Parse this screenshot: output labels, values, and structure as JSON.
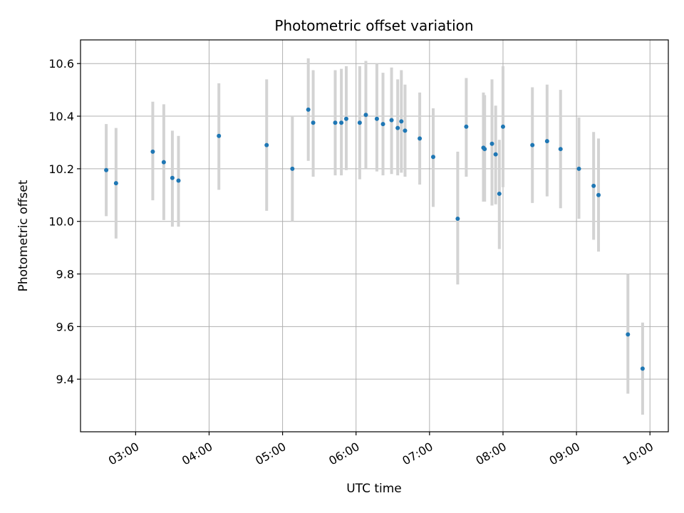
{
  "chart_data": {
    "type": "scatter",
    "title": "Photometric offset variation",
    "xlabel": "UTC time",
    "ylabel": "Photometric offset",
    "x_format": "HH:MM",
    "xlim": [
      "02:15",
      "10:15"
    ],
    "ylim": [
      9.2,
      10.69
    ],
    "xticks": [
      "03:00",
      "04:00",
      "05:00",
      "06:00",
      "07:00",
      "08:00",
      "09:00",
      "10:00"
    ],
    "yticks": [
      9.4,
      9.6,
      9.8,
      10.0,
      10.2,
      10.4,
      10.6
    ],
    "grid": true,
    "colors": {
      "point": "#1f77b4",
      "errorbar": "#d3d3d3",
      "grid": "#b0b0b0"
    },
    "points": [
      {
        "x": "02:36",
        "y": 10.195,
        "lo": 10.02,
        "hi": 10.37
      },
      {
        "x": "02:44",
        "y": 10.145,
        "lo": 9.935,
        "hi": 10.355
      },
      {
        "x": "03:14",
        "y": 10.265,
        "lo": 10.08,
        "hi": 10.455
      },
      {
        "x": "03:23",
        "y": 10.225,
        "lo": 10.005,
        "hi": 10.445
      },
      {
        "x": "03:30",
        "y": 10.165,
        "lo": 9.98,
        "hi": 10.345
      },
      {
        "x": "03:35",
        "y": 10.155,
        "lo": 9.98,
        "hi": 10.325
      },
      {
        "x": "04:08",
        "y": 10.325,
        "lo": 10.12,
        "hi": 10.525
      },
      {
        "x": "04:47",
        "y": 10.29,
        "lo": 10.04,
        "hi": 10.54
      },
      {
        "x": "05:08",
        "y": 10.2,
        "lo": 10.0,
        "hi": 10.4
      },
      {
        "x": "05:21",
        "y": 10.425,
        "lo": 10.23,
        "hi": 10.62
      },
      {
        "x": "05:25",
        "y": 10.375,
        "lo": 10.17,
        "hi": 10.575
      },
      {
        "x": "05:43",
        "y": 10.375,
        "lo": 10.175,
        "hi": 10.575
      },
      {
        "x": "05:48",
        "y": 10.375,
        "lo": 10.175,
        "hi": 10.58
      },
      {
        "x": "05:52",
        "y": 10.39,
        "lo": 10.195,
        "hi": 10.59
      },
      {
        "x": "06:03",
        "y": 10.375,
        "lo": 10.16,
        "hi": 10.59
      },
      {
        "x": "06:08",
        "y": 10.405,
        "lo": 10.2,
        "hi": 10.61
      },
      {
        "x": "06:17",
        "y": 10.39,
        "lo": 10.19,
        "hi": 10.6
      },
      {
        "x": "06:22",
        "y": 10.37,
        "lo": 10.175,
        "hi": 10.565
      },
      {
        "x": "06:29",
        "y": 10.385,
        "lo": 10.18,
        "hi": 10.585
      },
      {
        "x": "06:34",
        "y": 10.355,
        "lo": 10.175,
        "hi": 10.54
      },
      {
        "x": "06:37",
        "y": 10.38,
        "lo": 10.185,
        "hi": 10.575
      },
      {
        "x": "06:40",
        "y": 10.345,
        "lo": 10.17,
        "hi": 10.52
      },
      {
        "x": "06:52",
        "y": 10.315,
        "lo": 10.14,
        "hi": 10.49
      },
      {
        "x": "07:03",
        "y": 10.245,
        "lo": 10.055,
        "hi": 10.43
      },
      {
        "x": "07:23",
        "y": 10.01,
        "lo": 9.76,
        "hi": 10.265
      },
      {
        "x": "07:30",
        "y": 10.36,
        "lo": 10.17,
        "hi": 10.545
      },
      {
        "x": "07:44",
        "y": 10.28,
        "lo": 10.075,
        "hi": 10.49
      },
      {
        "x": "07:45",
        "y": 10.275,
        "lo": 10.075,
        "hi": 10.48
      },
      {
        "x": "07:51",
        "y": 10.295,
        "lo": 10.06,
        "hi": 10.54
      },
      {
        "x": "07:54",
        "y": 10.255,
        "lo": 10.065,
        "hi": 10.44
      },
      {
        "x": "07:57",
        "y": 10.105,
        "lo": 9.895,
        "hi": 10.31
      },
      {
        "x": "08:00",
        "y": 10.36,
        "lo": 10.13,
        "hi": 10.59
      },
      {
        "x": "08:24",
        "y": 10.29,
        "lo": 10.07,
        "hi": 10.51
      },
      {
        "x": "08:36",
        "y": 10.305,
        "lo": 10.095,
        "hi": 10.52
      },
      {
        "x": "08:47",
        "y": 10.275,
        "lo": 10.05,
        "hi": 10.5
      },
      {
        "x": "09:02",
        "y": 10.2,
        "lo": 10.01,
        "hi": 10.395
      },
      {
        "x": "09:14",
        "y": 10.135,
        "lo": 9.93,
        "hi": 10.34
      },
      {
        "x": "09:18",
        "y": 10.1,
        "lo": 9.885,
        "hi": 10.315
      },
      {
        "x": "09:42",
        "y": 9.57,
        "lo": 9.345,
        "hi": 9.8
      },
      {
        "x": "09:54",
        "y": 9.44,
        "lo": 9.265,
        "hi": 9.615
      }
    ]
  }
}
